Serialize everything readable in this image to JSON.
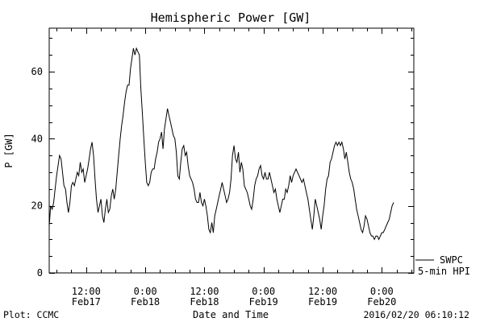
{
  "chart_data": {
    "type": "line",
    "title": "Hemispheric Power [GW]",
    "xlabel": "Date and Time",
    "ylabel": "P [GW]",
    "x_unit": "hours since 2016-02-17 00:00 UT",
    "xlim": [
      4.5,
      78.5
    ],
    "ylim": [
      0,
      73
    ],
    "yticks": [
      0,
      20,
      40,
      60
    ],
    "xticks": [
      {
        "x": 12,
        "time": "12:00",
        "date": "Feb17"
      },
      {
        "x": 24,
        "time": "0:00",
        "date": "Feb18"
      },
      {
        "x": 36,
        "time": "12:00",
        "date": "Feb18"
      },
      {
        "x": 48,
        "time": "0:00",
        "date": "Feb19"
      },
      {
        "x": 60,
        "time": "12:00",
        "date": "Feb19"
      },
      {
        "x": 72,
        "time": "0:00",
        "date": "Feb20"
      }
    ],
    "legend_placement": "bottom-right",
    "series": [
      {
        "name": "SWPC",
        "label2": "5-min HPI",
        "color": "#000000",
        "points": [
          [
            4.5,
            14
          ],
          [
            4.8,
            20
          ],
          [
            5.1,
            19
          ],
          [
            5.4,
            21
          ],
          [
            5.7,
            25
          ],
          [
            6.0,
            29
          ],
          [
            6.3,
            32
          ],
          [
            6.6,
            35
          ],
          [
            6.9,
            34
          ],
          [
            7.2,
            30
          ],
          [
            7.5,
            26
          ],
          [
            7.8,
            25
          ],
          [
            8.1,
            21
          ],
          [
            8.4,
            18
          ],
          [
            8.7,
            21
          ],
          [
            9.0,
            26
          ],
          [
            9.3,
            27
          ],
          [
            9.6,
            26
          ],
          [
            9.9,
            28
          ],
          [
            10.2,
            30
          ],
          [
            10.5,
            29
          ],
          [
            10.8,
            33
          ],
          [
            11.1,
            30
          ],
          [
            11.4,
            31
          ],
          [
            11.7,
            27
          ],
          [
            12.0,
            29
          ],
          [
            12.3,
            31
          ],
          [
            12.6,
            34
          ],
          [
            12.9,
            37
          ],
          [
            13.2,
            39
          ],
          [
            13.5,
            35
          ],
          [
            13.8,
            28
          ],
          [
            14.1,
            22
          ],
          [
            14.4,
            18
          ],
          [
            14.7,
            20
          ],
          [
            15.0,
            22
          ],
          [
            15.3,
            17
          ],
          [
            15.6,
            15
          ],
          [
            15.9,
            19
          ],
          [
            16.2,
            22
          ],
          [
            16.5,
            18
          ],
          [
            16.8,
            19
          ],
          [
            17.1,
            23
          ],
          [
            17.4,
            25
          ],
          [
            17.7,
            22
          ],
          [
            18.0,
            25
          ],
          [
            18.3,
            30
          ],
          [
            18.6,
            35
          ],
          [
            18.9,
            40
          ],
          [
            19.2,
            44
          ],
          [
            19.5,
            47
          ],
          [
            19.8,
            51
          ],
          [
            20.1,
            54
          ],
          [
            20.4,
            56
          ],
          [
            20.7,
            56
          ],
          [
            21.0,
            61
          ],
          [
            21.3,
            64
          ],
          [
            21.6,
            67
          ],
          [
            21.9,
            65
          ],
          [
            22.2,
            67
          ],
          [
            22.5,
            66
          ],
          [
            22.8,
            65
          ],
          [
            23.1,
            55
          ],
          [
            23.4,
            48
          ],
          [
            23.7,
            40
          ],
          [
            24.0,
            33
          ],
          [
            24.3,
            27
          ],
          [
            24.6,
            26
          ],
          [
            24.9,
            27
          ],
          [
            25.2,
            30
          ],
          [
            25.5,
            31
          ],
          [
            25.8,
            31
          ],
          [
            26.1,
            34
          ],
          [
            26.4,
            36
          ],
          [
            26.7,
            39
          ],
          [
            27.0,
            40
          ],
          [
            27.3,
            42
          ],
          [
            27.6,
            37
          ],
          [
            27.9,
            43
          ],
          [
            28.2,
            46
          ],
          [
            28.5,
            49
          ],
          [
            28.8,
            47
          ],
          [
            29.1,
            45
          ],
          [
            29.4,
            43
          ],
          [
            29.7,
            41
          ],
          [
            30.0,
            40
          ],
          [
            30.3,
            36
          ],
          [
            30.6,
            29
          ],
          [
            30.9,
            28
          ],
          [
            31.2,
            33
          ],
          [
            31.5,
            37
          ],
          [
            31.8,
            38
          ],
          [
            32.1,
            35
          ],
          [
            32.4,
            36
          ],
          [
            32.7,
            32
          ],
          [
            33.0,
            29
          ],
          [
            33.3,
            28
          ],
          [
            33.6,
            27
          ],
          [
            33.9,
            25
          ],
          [
            34.2,
            22
          ],
          [
            34.5,
            21
          ],
          [
            34.8,
            21
          ],
          [
            35.1,
            24
          ],
          [
            35.4,
            21
          ],
          [
            35.7,
            20
          ],
          [
            36.0,
            22
          ],
          [
            36.3,
            20
          ],
          [
            36.6,
            17
          ],
          [
            36.9,
            13
          ],
          [
            37.2,
            12
          ],
          [
            37.5,
            15
          ],
          [
            37.8,
            12
          ],
          [
            38.1,
            17
          ],
          [
            38.4,
            19
          ],
          [
            38.7,
            21
          ],
          [
            39.0,
            23
          ],
          [
            39.3,
            25
          ],
          [
            39.6,
            27
          ],
          [
            39.9,
            25
          ],
          [
            40.2,
            23
          ],
          [
            40.5,
            21
          ],
          [
            40.8,
            22
          ],
          [
            41.1,
            24
          ],
          [
            41.4,
            28
          ],
          [
            41.7,
            35
          ],
          [
            42.0,
            38
          ],
          [
            42.3,
            34
          ],
          [
            42.6,
            33
          ],
          [
            42.9,
            36
          ],
          [
            43.2,
            30
          ],
          [
            43.5,
            33
          ],
          [
            43.8,
            31
          ],
          [
            44.1,
            26
          ],
          [
            44.4,
            25
          ],
          [
            44.7,
            24
          ],
          [
            45.0,
            22
          ],
          [
            45.3,
            20
          ],
          [
            45.6,
            19
          ],
          [
            45.9,
            22
          ],
          [
            46.2,
            26
          ],
          [
            46.5,
            28
          ],
          [
            46.8,
            29
          ],
          [
            47.1,
            31
          ],
          [
            47.4,
            32
          ],
          [
            47.7,
            29
          ],
          [
            48.0,
            28
          ],
          [
            48.3,
            30
          ],
          [
            48.6,
            28
          ],
          [
            48.9,
            28
          ],
          [
            49.2,
            30
          ],
          [
            49.5,
            28
          ],
          [
            49.8,
            26
          ],
          [
            50.1,
            24
          ],
          [
            50.4,
            25
          ],
          [
            50.7,
            22
          ],
          [
            51.0,
            20
          ],
          [
            51.3,
            18
          ],
          [
            51.6,
            20
          ],
          [
            51.9,
            22
          ],
          [
            52.2,
            22
          ],
          [
            52.5,
            25
          ],
          [
            52.8,
            24
          ],
          [
            53.1,
            26
          ],
          [
            53.4,
            29
          ],
          [
            53.7,
            27
          ],
          [
            54.0,
            29
          ],
          [
            54.3,
            30
          ],
          [
            54.6,
            31
          ],
          [
            54.9,
            30
          ],
          [
            55.2,
            29
          ],
          [
            55.5,
            28
          ],
          [
            55.8,
            27
          ],
          [
            56.1,
            28
          ],
          [
            56.4,
            26
          ],
          [
            56.7,
            24
          ],
          [
            57.0,
            22
          ],
          [
            57.3,
            19
          ],
          [
            57.6,
            16
          ],
          [
            57.9,
            13
          ],
          [
            58.2,
            17
          ],
          [
            58.5,
            22
          ],
          [
            58.8,
            20
          ],
          [
            59.1,
            18
          ],
          [
            59.4,
            16
          ],
          [
            59.7,
            13
          ],
          [
            60.0,
            17
          ],
          [
            60.3,
            20
          ],
          [
            60.6,
            25
          ],
          [
            60.9,
            28
          ],
          [
            61.2,
            29
          ],
          [
            61.5,
            33
          ],
          [
            61.8,
            34
          ],
          [
            62.1,
            36
          ],
          [
            62.4,
            38
          ],
          [
            62.7,
            39
          ],
          [
            63.0,
            38
          ],
          [
            63.3,
            39
          ],
          [
            63.6,
            38
          ],
          [
            63.9,
            39
          ],
          [
            64.2,
            37
          ],
          [
            64.5,
            34
          ],
          [
            64.8,
            36
          ],
          [
            65.1,
            33
          ],
          [
            65.4,
            30
          ],
          [
            65.7,
            28
          ],
          [
            66.0,
            27
          ],
          [
            66.3,
            25
          ],
          [
            66.6,
            22
          ],
          [
            66.9,
            19
          ],
          [
            67.2,
            17
          ],
          [
            67.5,
            15
          ],
          [
            67.8,
            13
          ],
          [
            68.1,
            12
          ],
          [
            68.4,
            14
          ],
          [
            68.7,
            17
          ],
          [
            69.0,
            16
          ],
          [
            69.3,
            14
          ],
          [
            69.6,
            12
          ],
          [
            69.9,
            11
          ],
          [
            70.2,
            11
          ],
          [
            70.5,
            10
          ],
          [
            70.8,
            11
          ],
          [
            71.1,
            11
          ],
          [
            71.4,
            10
          ],
          [
            71.7,
            11
          ],
          [
            72.0,
            12
          ],
          [
            72.3,
            12
          ],
          [
            72.6,
            13
          ],
          [
            72.9,
            14
          ],
          [
            73.2,
            15
          ],
          [
            73.5,
            16
          ],
          [
            73.8,
            18
          ],
          [
            74.1,
            20
          ],
          [
            74.4,
            21
          ]
        ]
      }
    ]
  },
  "footer": {
    "left": "Plot: CCMC",
    "right": "2016/02/20 06:10:12"
  }
}
